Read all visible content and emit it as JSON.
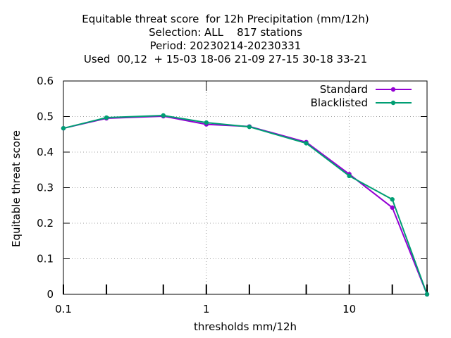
{
  "chart_data": {
    "type": "line",
    "title_lines": [
      "Equitable threat score  for 12h Precipitation (mm/12h)",
      "Selection: ALL    817 stations",
      "Period: 20230214-20230331",
      "Used  00,12  + 15-03 18-06 21-09 27-15 30-18 33-21"
    ],
    "xlabel": "thresholds mm/12h",
    "ylabel": "Equitable threat score",
    "x_scale": "log",
    "xlim": [
      0.1,
      35
    ],
    "ylim": [
      0,
      0.6
    ],
    "x_ticks": [
      {
        "value": 0.1,
        "label": "0.1"
      },
      {
        "value": 1,
        "label": "1"
      },
      {
        "value": 10,
        "label": "10"
      }
    ],
    "y_ticks": [
      {
        "value": 0,
        "label": "0"
      },
      {
        "value": 0.1,
        "label": "0.1"
      },
      {
        "value": 0.2,
        "label": "0.2"
      },
      {
        "value": 0.3,
        "label": "0.3"
      },
      {
        "value": 0.4,
        "label": "0.4"
      },
      {
        "value": 0.5,
        "label": "0.5"
      },
      {
        "value": 0.6,
        "label": "0.6"
      }
    ],
    "grid": true,
    "legend_position": "top-right",
    "series": [
      {
        "name": "Standard",
        "color": "#9400d3",
        "x": [
          0.1,
          0.2,
          0.5,
          1,
          2,
          5,
          10,
          20,
          35
        ],
        "y": [
          0.467,
          0.495,
          0.501,
          0.478,
          0.472,
          0.428,
          0.338,
          0.244,
          0.0
        ]
      },
      {
        "name": "Blacklisted",
        "color": "#009e73",
        "x": [
          0.1,
          0.2,
          0.5,
          1,
          2,
          5,
          10,
          20,
          35
        ],
        "y": [
          0.467,
          0.497,
          0.503,
          0.483,
          0.471,
          0.425,
          0.333,
          0.267,
          0.0
        ]
      }
    ]
  }
}
